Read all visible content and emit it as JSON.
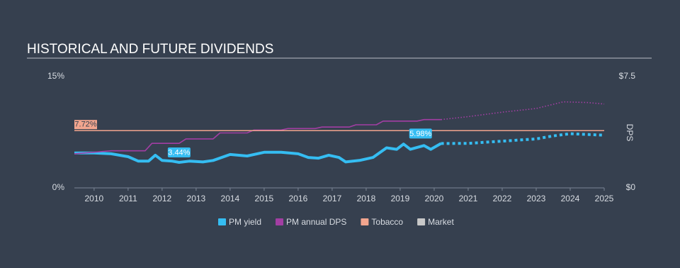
{
  "chart_data": {
    "type": "line",
    "title": "HISTORICAL AND FUTURE DIVIDENDS",
    "y2_label": "DPS",
    "xlim": [
      2009.42,
      2025
    ],
    "xticks": [
      2010,
      2011,
      2012,
      2013,
      2014,
      2015,
      2016,
      2017,
      2018,
      2019,
      2020,
      2021,
      2022,
      2023,
      2024,
      2025
    ],
    "ylim": [
      0,
      15
    ],
    "yticks": [
      {
        "value": 0,
        "label": "0%"
      },
      {
        "value": 15,
        "label": "15%"
      }
    ],
    "y2lim": [
      0,
      7.5
    ],
    "y2ticks": [
      {
        "value": 0,
        "label": "$0"
      },
      {
        "value": 7.5,
        "label": "$7.5"
      }
    ],
    "series": [
      {
        "name": "PM yield",
        "color": "#35bdf2",
        "x": [
          2009.42,
          2010,
          2010.5,
          2011,
          2011.3,
          2011.6,
          2011.8,
          2012,
          2012.3,
          2012.5,
          2012.8,
          2013.2,
          2013.5,
          2014,
          2014.5,
          2015,
          2015.5,
          2016,
          2016.3,
          2016.6,
          2016.9,
          2017.2,
          2017.4,
          2017.8,
          2018.2,
          2018.6,
          2018.9,
          2019.1,
          2019.3,
          2019.7,
          2019.9,
          2020.2
        ],
        "values": [
          4.7,
          4.7,
          4.6,
          4.2,
          3.6,
          3.6,
          4.4,
          3.7,
          3.6,
          3.44,
          3.6,
          3.5,
          3.7,
          4.5,
          4.3,
          4.8,
          4.8,
          4.6,
          4.1,
          4.0,
          4.4,
          4.1,
          3.5,
          3.7,
          4.1,
          5.4,
          5.2,
          5.9,
          5.2,
          5.7,
          5.2,
          5.98
        ],
        "forecast_x": [
          2020.2,
          2021,
          2022,
          2023,
          2023.5,
          2024,
          2025
        ],
        "forecast_values": [
          5.98,
          6.0,
          6.3,
          6.6,
          7.0,
          7.3,
          7.1
        ]
      },
      {
        "name": "PM annual DPS",
        "color": "#a23ea3",
        "axis": "y2",
        "x": [
          2009.42,
          2010.5,
          2011.5,
          2011.7,
          2012.5,
          2012.7,
          2013.5,
          2013.7,
          2014.5,
          2014.7,
          2015.5,
          2015.7,
          2016.5,
          2016.7,
          2017.5,
          2017.7,
          2018.3,
          2018.5,
          2019.5,
          2019.7,
          2020.2
        ],
        "values": [
          2.3,
          2.5,
          2.5,
          3.0,
          3.0,
          3.3,
          3.3,
          3.7,
          3.7,
          3.9,
          3.9,
          4.0,
          4.0,
          4.1,
          4.1,
          4.25,
          4.25,
          4.5,
          4.5,
          4.6,
          4.6
        ],
        "forecast_x": [
          2020.2,
          2021,
          2022,
          2023,
          2023.8,
          2024.5,
          2025
        ],
        "forecast_values": [
          4.6,
          4.8,
          5.1,
          5.35,
          5.8,
          5.75,
          5.65
        ]
      },
      {
        "name": "Tobacco",
        "color": "#f2a58e",
        "values": [
          7.72
        ],
        "value_labels": [
          "7.72%"
        ]
      },
      {
        "name": "Market",
        "color": "#c8c8c8"
      }
    ],
    "annotations": [
      {
        "series": 0,
        "x": 2012.5,
        "value": 3.44,
        "label": "3.44%"
      },
      {
        "series": 0,
        "x": 2019.6,
        "value": 5.98,
        "label": "5.98%"
      }
    ]
  }
}
